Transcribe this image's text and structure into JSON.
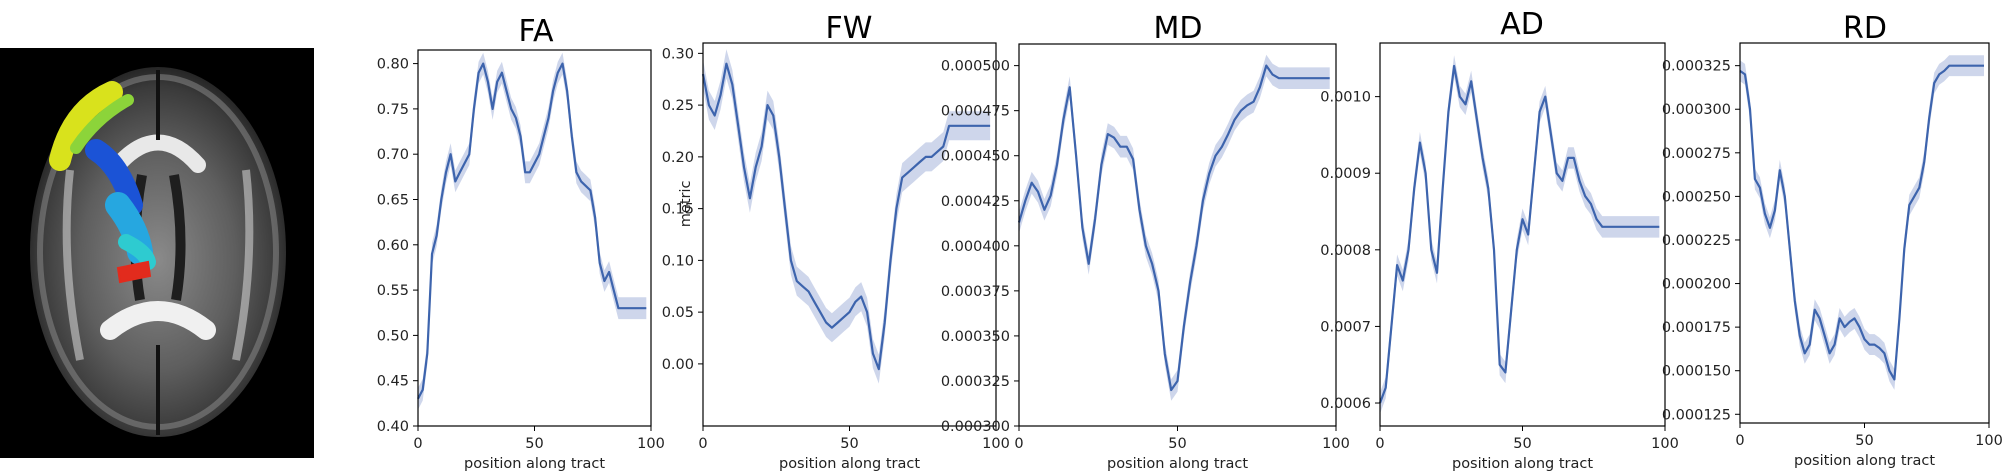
{
  "brain_image": {
    "background_color": "#000000",
    "tract_colors": [
      "#d9e21c",
      "#8cd43a",
      "#26a7e0",
      "#1b53d6",
      "#30c4f0",
      "#2ecbd0",
      "#e22b1d"
    ]
  },
  "colors": {
    "line": "#3d64ad",
    "band": "#c5cfe7",
    "axis": "#000000"
  },
  "chart_data": [
    {
      "type": "line",
      "title": "FA",
      "xlabel": "position along tract",
      "ylabel": "",
      "xlim": [
        0,
        100
      ],
      "ylim": [
        0.4,
        0.815
      ],
      "xticks": [
        0,
        50,
        100
      ],
      "xtick_labels": [
        "0",
        "50",
        "100"
      ],
      "yticks": [
        0.4,
        0.45,
        0.5,
        0.55,
        0.6,
        0.65,
        0.7,
        0.75,
        0.8
      ],
      "ytick_labels": [
        "0.40",
        "0.45",
        "0.50",
        "0.55",
        "0.60",
        "0.65",
        "0.70",
        "0.75",
        "0.80"
      ],
      "band": 0.012,
      "series": [
        {
          "name": "",
          "x": [
            0,
            2,
            4,
            6,
            8,
            10,
            12,
            14,
            16,
            18,
            20,
            22,
            24,
            26,
            28,
            30,
            32,
            34,
            36,
            38,
            40,
            42,
            44,
            46,
            48,
            50,
            52,
            54,
            56,
            58,
            60,
            62,
            64,
            66,
            68,
            70,
            72,
            74,
            76,
            78,
            80,
            82,
            84,
            86,
            88,
            90,
            92,
            94,
            96,
            98
          ],
          "y": [
            0.43,
            0.44,
            0.48,
            0.59,
            0.61,
            0.65,
            0.68,
            0.7,
            0.67,
            0.68,
            0.69,
            0.7,
            0.75,
            0.79,
            0.8,
            0.78,
            0.75,
            0.78,
            0.79,
            0.77,
            0.75,
            0.74,
            0.72,
            0.68,
            0.68,
            0.69,
            0.7,
            0.72,
            0.74,
            0.77,
            0.79,
            0.8,
            0.77,
            0.72,
            0.68,
            0.67,
            0.665,
            0.66,
            0.63,
            0.58,
            0.56,
            0.57,
            0.55,
            0.53,
            0.53,
            0.53,
            0.53,
            0.53,
            0.53,
            0.53
          ]
        }
      ]
    },
    {
      "type": "line",
      "title": "FW",
      "xlabel": "position along tract",
      "ylabel": "metric",
      "xlim": [
        0,
        100
      ],
      "ylim": [
        -0.06,
        0.31
      ],
      "xticks": [
        0,
        50,
        100
      ],
      "xtick_labels": [
        "0",
        "50",
        "100"
      ],
      "yticks": [
        0.0,
        0.05,
        0.1,
        0.15,
        0.2,
        0.25,
        0.3
      ],
      "ytick_labels": [
        "0.00",
        "0.05",
        "0.10",
        "0.15",
        "0.20",
        "0.25",
        "0.30"
      ],
      "band": 0.014,
      "series": [
        {
          "name": "",
          "x": [
            0,
            2,
            4,
            6,
            8,
            10,
            12,
            14,
            16,
            18,
            20,
            22,
            24,
            26,
            28,
            30,
            32,
            34,
            36,
            38,
            40,
            42,
            44,
            46,
            48,
            50,
            52,
            54,
            56,
            58,
            60,
            62,
            64,
            66,
            68,
            70,
            72,
            74,
            76,
            78,
            80,
            82,
            84,
            86,
            88,
            90,
            92,
            94,
            96,
            98
          ],
          "y": [
            0.28,
            0.25,
            0.24,
            0.26,
            0.29,
            0.27,
            0.23,
            0.19,
            0.16,
            0.19,
            0.21,
            0.25,
            0.24,
            0.2,
            0.15,
            0.1,
            0.08,
            0.075,
            0.07,
            0.06,
            0.05,
            0.04,
            0.035,
            0.04,
            0.045,
            0.05,
            0.06,
            0.065,
            0.05,
            0.01,
            -0.005,
            0.04,
            0.1,
            0.15,
            0.18,
            0.185,
            0.19,
            0.195,
            0.2,
            0.2,
            0.205,
            0.21,
            0.23,
            0.23,
            0.23,
            0.23,
            0.23,
            0.23,
            0.23,
            0.23
          ]
        }
      ]
    },
    {
      "type": "line",
      "title": "MD",
      "xlabel": "position along tract",
      "ylabel": "",
      "xlim": [
        0,
        100
      ],
      "ylim": [
        0.0003,
        0.000512
      ],
      "xticks": [
        0,
        50,
        100
      ],
      "xtick_labels": [
        "0",
        "50",
        "100"
      ],
      "yticks": [
        0.0003,
        0.000325,
        0.00035,
        0.000375,
        0.0004,
        0.000425,
        0.00045,
        0.000475,
        0.0005
      ],
      "ytick_labels": [
        "0.000300",
        "0.000325",
        "0.000350",
        "0.000375",
        "0.000400",
        "0.000425",
        "0.000450",
        "0.000475",
        "0.000500"
      ],
      "band": 6e-06,
      "series": [
        {
          "name": "",
          "x": [
            0,
            2,
            4,
            6,
            8,
            10,
            12,
            14,
            16,
            18,
            20,
            22,
            24,
            26,
            28,
            30,
            32,
            34,
            36,
            38,
            40,
            42,
            44,
            46,
            48,
            50,
            52,
            54,
            56,
            58,
            60,
            62,
            64,
            66,
            68,
            70,
            72,
            74,
            76,
            78,
            80,
            82,
            84,
            86,
            88,
            90,
            92,
            94,
            96,
            98
          ],
          "y": [
            0.000413,
            0.000425,
            0.000435,
            0.00043,
            0.00042,
            0.000428,
            0.000445,
            0.00047,
            0.000488,
            0.00045,
            0.00041,
            0.00039,
            0.000415,
            0.000445,
            0.000462,
            0.00046,
            0.000455,
            0.000455,
            0.000448,
            0.00042,
            0.0004,
            0.00039,
            0.000375,
            0.00034,
            0.00032,
            0.000325,
            0.000355,
            0.00038,
            0.0004,
            0.000425,
            0.00044,
            0.00045,
            0.000455,
            0.000462,
            0.00047,
            0.000475,
            0.000478,
            0.00048,
            0.000488,
            0.0005,
            0.000495,
            0.000493,
            0.000493,
            0.000493,
            0.000493,
            0.000493,
            0.000493,
            0.000493,
            0.000493,
            0.000493
          ]
        }
      ]
    },
    {
      "type": "line",
      "title": "AD",
      "xlabel": "position along tract",
      "ylabel": "",
      "xlim": [
        0,
        100
      ],
      "ylim": [
        0.00057,
        0.00107
      ],
      "xticks": [
        0,
        50,
        100
      ],
      "xtick_labels": [
        "0",
        "50",
        "100"
      ],
      "yticks": [
        0.0006,
        0.0007,
        0.0008,
        0.0009,
        0.001
      ],
      "ytick_labels": [
        "0.0006",
        "0.0007",
        "0.0008",
        "0.0009",
        "0.0010"
      ],
      "band": 1.4e-05,
      "series": [
        {
          "name": "",
          "x": [
            0,
            2,
            4,
            6,
            8,
            10,
            12,
            14,
            16,
            18,
            20,
            22,
            24,
            26,
            28,
            30,
            32,
            34,
            36,
            38,
            40,
            42,
            44,
            46,
            48,
            50,
            52,
            54,
            56,
            58,
            60,
            62,
            64,
            66,
            68,
            70,
            72,
            74,
            76,
            78,
            80,
            82,
            84,
            86,
            88,
            90,
            92,
            94,
            96,
            98
          ],
          "y": [
            0.0006,
            0.00062,
            0.0007,
            0.00078,
            0.00076,
            0.0008,
            0.00088,
            0.00094,
            0.0009,
            0.0008,
            0.00077,
            0.00088,
            0.00098,
            0.00104,
            0.001,
            0.00099,
            0.00102,
            0.00097,
            0.00092,
            0.00088,
            0.0008,
            0.00065,
            0.00064,
            0.00072,
            0.0008,
            0.00084,
            0.00082,
            0.0009,
            0.00098,
            0.001,
            0.00095,
            0.0009,
            0.00089,
            0.00092,
            0.00092,
            0.00089,
            0.00087,
            0.00086,
            0.00084,
            0.00083,
            0.00083,
            0.00083,
            0.00083,
            0.00083,
            0.00083,
            0.00083,
            0.00083,
            0.00083,
            0.00083,
            0.00083
          ]
        }
      ]
    },
    {
      "type": "line",
      "title": "RD",
      "xlabel": "position along tract",
      "ylabel": "",
      "xlim": [
        0,
        100
      ],
      "ylim": [
        0.00012,
        0.000338
      ],
      "xticks": [
        0,
        50,
        100
      ],
      "xtick_labels": [
        "0",
        "50",
        "100"
      ],
      "yticks": [
        0.000125,
        0.00015,
        0.000175,
        0.0002,
        0.000225,
        0.00025,
        0.000275,
        0.0003,
        0.000325
      ],
      "ytick_labels": [
        "0.000125",
        "0.000150",
        "0.000175",
        "0.000200",
        "0.000225",
        "0.000250",
        "0.000275",
        "0.000300",
        "0.000325"
      ],
      "band": 6e-06,
      "series": [
        {
          "name": "",
          "x": [
            0,
            2,
            4,
            6,
            8,
            10,
            12,
            14,
            16,
            18,
            20,
            22,
            24,
            26,
            28,
            30,
            32,
            34,
            36,
            38,
            40,
            42,
            44,
            46,
            48,
            50,
            52,
            54,
            56,
            58,
            60,
            62,
            64,
            66,
            68,
            70,
            72,
            74,
            76,
            78,
            80,
            82,
            84,
            86,
            88,
            90,
            92,
            94,
            96,
            98
          ],
          "y": [
            0.000322,
            0.00032,
            0.0003,
            0.00026,
            0.000255,
            0.00024,
            0.000232,
            0.000242,
            0.000265,
            0.00025,
            0.00022,
            0.00019,
            0.00017,
            0.00016,
            0.000165,
            0.000185,
            0.00018,
            0.00017,
            0.00016,
            0.000165,
            0.00018,
            0.000175,
            0.000178,
            0.00018,
            0.000175,
            0.000168,
            0.000165,
            0.000165,
            0.000163,
            0.00016,
            0.00015,
            0.000145,
            0.00018,
            0.00022,
            0.000245,
            0.00025,
            0.000255,
            0.00027,
            0.000295,
            0.000315,
            0.00032,
            0.000322,
            0.000325,
            0.000325,
            0.000325,
            0.000325,
            0.000325,
            0.000325,
            0.000325,
            0.000325
          ]
        }
      ]
    }
  ]
}
